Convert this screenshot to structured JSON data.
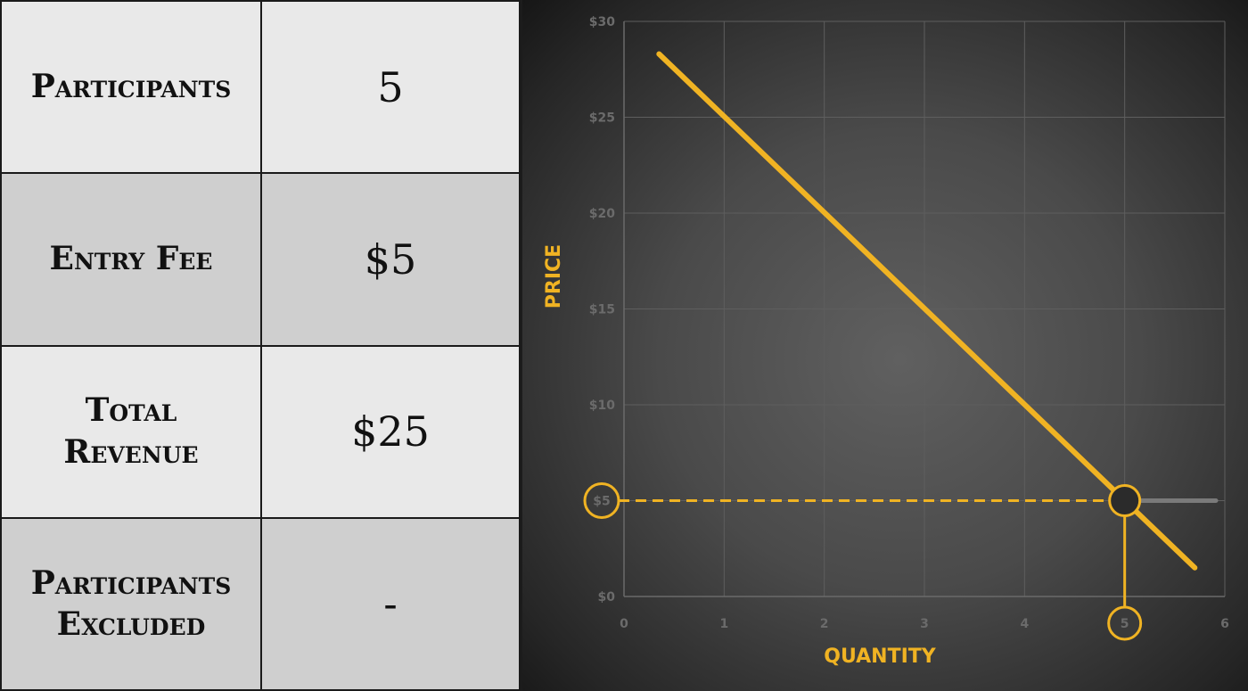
{
  "table": {
    "rows": [
      {
        "label": "Participants",
        "value": "5"
      },
      {
        "label": "Entry Fee",
        "value": "$5"
      },
      {
        "label": "Total Revenue",
        "value": "$25"
      },
      {
        "label": "Participants Excluded",
        "value": "-"
      }
    ]
  },
  "colors": {
    "accent": "#f0b323",
    "highlight_line": "#7a7a7a"
  },
  "chart_data": {
    "type": "line",
    "xlabel": "QUANTITY",
    "ylabel": "PRICE",
    "xlim": [
      0,
      6
    ],
    "ylim": [
      0,
      30
    ],
    "x_ticks": [
      "0",
      "1",
      "2",
      "3",
      "4",
      "5",
      "6"
    ],
    "y_ticks": [
      "$0",
      "$5",
      "$10",
      "$15",
      "$20",
      "$25",
      "$30"
    ],
    "grid": true,
    "series": [
      {
        "x": [
          0.35,
          5.7
        ],
        "y": [
          28.3,
          1.5
        ]
      }
    ],
    "highlight": {
      "price_label": "$5",
      "quantity_label": "5",
      "price": 5,
      "quantity": 5
    }
  }
}
